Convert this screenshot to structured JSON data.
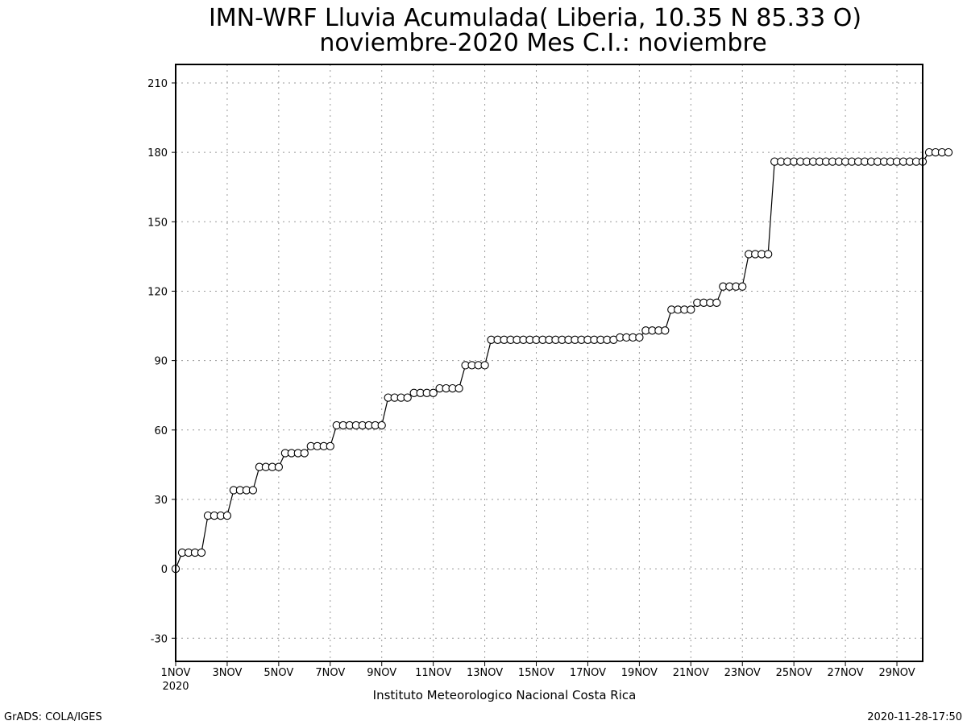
{
  "chart_data": {
    "type": "line",
    "title_line1": "IMN-WRF  Lluvia Acumulada( Liberia, 10.35  N 85.33  O)",
    "title_line2": "noviembre-2020 Mes C.I.: noviembre",
    "xlabel": "",
    "ylabel": "",
    "ylim": [
      -40,
      218
    ],
    "xlim": [
      0,
      29
    ],
    "x_unit": "days since 2020-11-01 00:00, 6-hourly",
    "y_ticks": [
      -30,
      0,
      30,
      60,
      90,
      120,
      150,
      180,
      210
    ],
    "x_ticks": [
      {
        "x": 0,
        "label": "1NOV",
        "sub": "2020"
      },
      {
        "x": 2,
        "label": "3NOV"
      },
      {
        "x": 4,
        "label": "5NOV"
      },
      {
        "x": 6,
        "label": "7NOV"
      },
      {
        "x": 8,
        "label": "9NOV"
      },
      {
        "x": 10,
        "label": "11NOV"
      },
      {
        "x": 12,
        "label": "13NOV"
      },
      {
        "x": 14,
        "label": "15NOV"
      },
      {
        "x": 16,
        "label": "17NOV"
      },
      {
        "x": 18,
        "label": "19NOV"
      },
      {
        "x": 20,
        "label": "21NOV"
      },
      {
        "x": 22,
        "label": "23NOV"
      },
      {
        "x": 24,
        "label": "25NOV"
      },
      {
        "x": 26,
        "label": "27NOV"
      },
      {
        "x": 28,
        "label": "29NOV"
      }
    ],
    "grid": true,
    "marker": "open-circle",
    "series": [
      {
        "name": "Lluvia Acumulada",
        "color": "#000000",
        "values": [
          0,
          7,
          7,
          7,
          7,
          23,
          23,
          23,
          23,
          34,
          34,
          34,
          34,
          44,
          44,
          44,
          44,
          50,
          50,
          50,
          50,
          53,
          53,
          53,
          53,
          62,
          62,
          62,
          62,
          62,
          62,
          62,
          62,
          74,
          74,
          74,
          74,
          76,
          76,
          76,
          76,
          78,
          78,
          78,
          78,
          88,
          88,
          88,
          88,
          99,
          99,
          99,
          99,
          99,
          99,
          99,
          99,
          99,
          99,
          99,
          99,
          99,
          99,
          99,
          99,
          99,
          99,
          99,
          99,
          100,
          100,
          100,
          100,
          103,
          103,
          103,
          103,
          112,
          112,
          112,
          112,
          115,
          115,
          115,
          115,
          122,
          122,
          122,
          122,
          136,
          136,
          136,
          136,
          176,
          176,
          176,
          176,
          176,
          176,
          176,
          176,
          176,
          176,
          176,
          176,
          176,
          176,
          176,
          176,
          176,
          176,
          176,
          176,
          176,
          176,
          176,
          176,
          180,
          180,
          180,
          180
        ]
      }
    ]
  },
  "footer": {
    "institution": "Instituto Meteorologico Nacional Costa Rica",
    "software": "GrADS: COLA/IGES",
    "timestamp": "2020-11-28-17:50"
  }
}
